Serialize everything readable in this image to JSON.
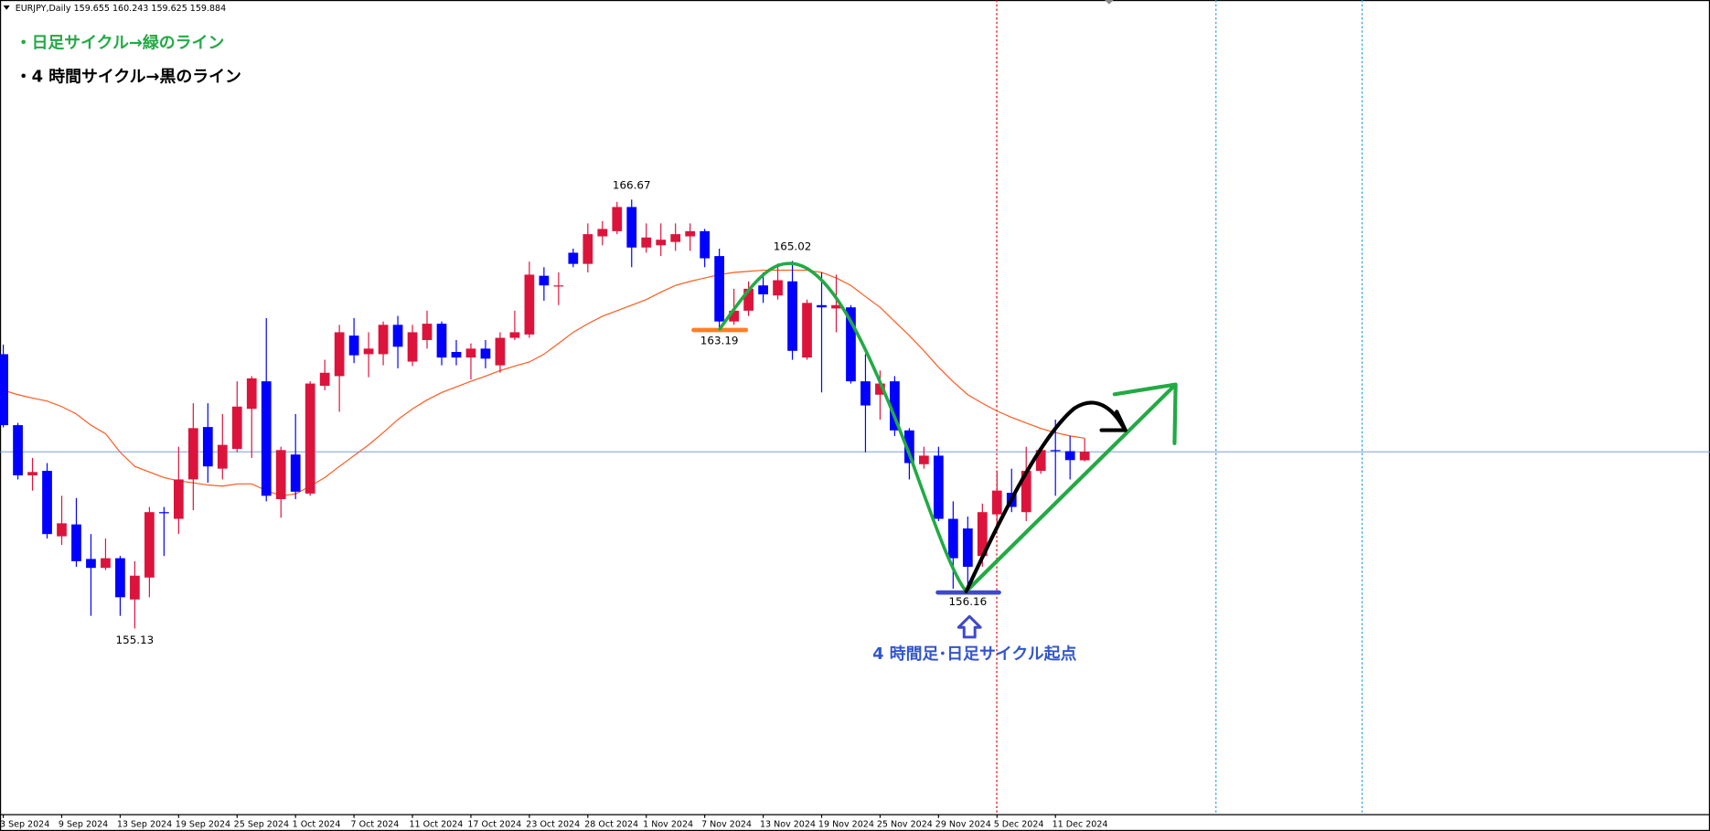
{
  "chart_data": {
    "type": "candlestick",
    "title": "EURJPY,Daily  159.655 160.243 159.625 159.884",
    "notes": [
      "・日足サイクル→緑のライン",
      "・4 時間サイクル→黒のライン"
    ],
    "annotation": "4 時間足･日足サイクル起点",
    "categories": [
      "3 Sep 2024",
      null,
      null,
      null,
      "9 Sep 2024",
      null,
      null,
      null,
      "13 Sep 2024",
      null,
      null,
      null,
      "19 Sep 2024",
      null,
      null,
      null,
      "25 Sep 2024",
      null,
      null,
      null,
      "1 Oct 2024",
      null,
      null,
      null,
      "7 Oct 2024",
      null,
      null,
      null,
      "11 Oct 2024",
      null,
      null,
      null,
      "17 Oct 2024",
      null,
      null,
      null,
      "23 Oct 2024",
      null,
      null,
      null,
      "28 Oct 2024",
      null,
      null,
      null,
      "1 Nov 2024",
      null,
      null,
      null,
      "7 Nov 2024",
      null,
      null,
      null,
      "13 Nov 2024",
      null,
      null,
      null,
      "19 Nov 2024",
      null,
      null,
      null,
      "25 Nov 2024",
      null,
      null,
      null,
      "29 Nov 2024",
      null,
      null,
      null,
      "5 Dec 2024",
      null,
      null,
      null,
      "11 Dec 2024",
      null,
      null
    ],
    "open": [
      162.51,
      160.6,
      159.25,
      159.37,
      157.61,
      157.93,
      157.0,
      156.76,
      157.02,
      155.91,
      156.5,
      158.26,
      158.08,
      159.14,
      160.55,
      159.43,
      159.96,
      161.04,
      161.78,
      158.61,
      159.81,
      158.76,
      161.66,
      161.92,
      163.01,
      162.51,
      162.51,
      163.3,
      162.31,
      162.89,
      163.33,
      162.57,
      162.42,
      162.66,
      162.21,
      162.95,
      163.04,
      164.62,
      164.33,
      165.24,
      164.94,
      165.68,
      165.82,
      166.47,
      165.38,
      165.44,
      165.53,
      165.68,
      165.82,
      165.15,
      163.39,
      163.68,
      164.36,
      164.09,
      164.47,
      162.42,
      163.83,
      163.74,
      163.77,
      161.78,
      161.42,
      161.78,
      160.46,
      159.55,
      159.78,
      158.08,
      157.82,
      157.08,
      158.2,
      158.78,
      158.26,
      159.37,
      159.93,
      159.9,
      159.655
    ],
    "high": [
      162.77,
      160.66,
      159.72,
      159.58,
      158.7,
      158.64,
      157.67,
      157.55,
      157.08,
      156.94,
      158.4,
      158.4,
      160.02,
      161.19,
      161.19,
      160.9,
      161.78,
      161.92,
      163.48,
      160.02,
      160.9,
      161.78,
      162.36,
      163.3,
      163.48,
      163.1,
      163.39,
      163.54,
      163.3,
      163.68,
      163.39,
      162.89,
      162.8,
      162.89,
      163.1,
      163.68,
      165.0,
      164.85,
      164.71,
      165.35,
      166.03,
      166.09,
      166.61,
      166.67,
      166.03,
      166.03,
      166.03,
      166.03,
      165.88,
      165.35,
      164.27,
      164.47,
      164.71,
      164.95,
      165.02,
      163.98,
      164.71,
      164.65,
      163.83,
      162.51,
      162.07,
      161.92,
      160.52,
      160.02,
      160.02,
      158.55,
      158.14,
      158.49,
      159.37,
      159.43,
      160.02,
      160.02,
      160.75,
      160.31,
      160.243
    ],
    "low": [
      160.54,
      159.14,
      158.84,
      157.55,
      157.38,
      156.79,
      155.47,
      156.7,
      155.47,
      155.13,
      155.97,
      157.08,
      157.67,
      158.31,
      159.05,
      159.14,
      159.87,
      159.72,
      158.55,
      158.11,
      158.61,
      158.7,
      161.54,
      160.96,
      162.27,
      161.89,
      162.21,
      162.13,
      162.19,
      162.66,
      162.21,
      162.21,
      161.83,
      162.13,
      162.01,
      162.89,
      162.95,
      163.95,
      163.83,
      164.85,
      164.71,
      165.44,
      165.74,
      164.85,
      165.24,
      165.15,
      165.29,
      165.29,
      164.85,
      163.19,
      163.3,
      163.54,
      163.89,
      163.98,
      162.36,
      162.36,
      161.48,
      163.1,
      161.72,
      159.87,
      160.75,
      160.31,
      159.14,
      159.43,
      158.02,
      156.2,
      156.16,
      156.79,
      157.82,
      158.26,
      158.02,
      159.29,
      158.7,
      159.14,
      159.625
    ],
    "close": [
      160.6,
      159.25,
      159.34,
      157.67,
      157.96,
      156.94,
      156.76,
      157.02,
      155.97,
      156.55,
      158.26,
      158.23,
      159.14,
      160.52,
      159.49,
      160.07,
      161.1,
      161.86,
      158.7,
      159.93,
      158.81,
      161.72,
      162.01,
      163.1,
      162.48,
      162.66,
      163.3,
      162.71,
      163.1,
      163.33,
      162.42,
      162.42,
      162.66,
      162.39,
      162.95,
      163.1,
      164.65,
      164.36,
      164.36,
      164.94,
      165.74,
      165.88,
      166.47,
      165.38,
      165.65,
      165.59,
      165.74,
      165.82,
      165.09,
      163.39,
      163.68,
      164.27,
      164.12,
      164.5,
      162.6,
      163.89,
      163.77,
      163.83,
      161.78,
      161.13,
      161.72,
      160.46,
      159.58,
      159.78,
      158.08,
      157.02,
      156.79,
      158.26,
      158.84,
      158.4,
      159.37,
      159.93,
      159.9,
      159.66,
      159.884
    ],
    "up_color": "#dc143c",
    "down_color": "#0000ff",
    "overlay": {
      "color": "#ff5a1f",
      "values": [
        161.54,
        161.42,
        161.33,
        161.25,
        161.1,
        160.9,
        160.6,
        160.37,
        159.87,
        159.49,
        159.34,
        159.19,
        159.1,
        159.05,
        158.99,
        158.96,
        159.02,
        159.02,
        158.84,
        158.7,
        158.75,
        158.96,
        159.19,
        159.49,
        159.78,
        160.07,
        160.4,
        160.75,
        161.04,
        161.28,
        161.48,
        161.63,
        161.78,
        161.92,
        162.07,
        162.19,
        162.3,
        162.51,
        162.8,
        163.1,
        163.33,
        163.53,
        163.68,
        163.83,
        163.98,
        164.18,
        164.36,
        164.47,
        164.56,
        164.65,
        164.71,
        164.74,
        164.77,
        164.77,
        164.77,
        164.77,
        164.71,
        164.56,
        164.36,
        164.06,
        163.77,
        163.39,
        163.01,
        162.6,
        162.16,
        161.77,
        161.42,
        161.19,
        160.98,
        160.81,
        160.66,
        160.51,
        160.4,
        160.31,
        160.25
      ]
    },
    "price_labels": [
      {
        "index": 43,
        "value": 166.67
      },
      {
        "index": 54,
        "value": 165.02
      },
      {
        "index": 49,
        "value": 163.19
      },
      {
        "index": 9,
        "value": 155.13
      },
      {
        "index": 66,
        "value": 156.16
      }
    ],
    "ylim": [
      150.12,
      172.04
    ],
    "grid": false
  }
}
